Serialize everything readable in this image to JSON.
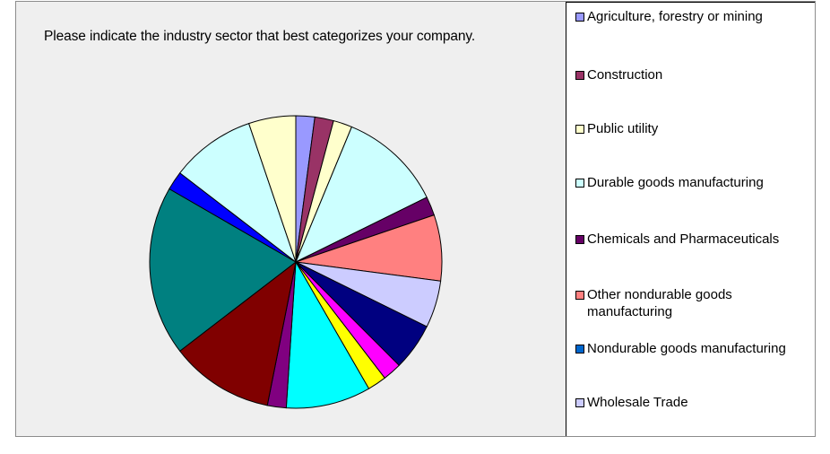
{
  "chart_data": {
    "type": "pie",
    "title": "Please indicate the industry sector that best categorizes your company.",
    "start_angle_deg": 0,
    "direction": "clockwise",
    "slices": [
      {
        "label": "Agriculture, forestry or mining",
        "value": 2,
        "color": "#9999ff"
      },
      {
        "label": "Construction",
        "value": 2,
        "color": "#993366"
      },
      {
        "label": "Public utility",
        "value": 2,
        "color": "#ffffcc"
      },
      {
        "label": "Durable goods manufacturing",
        "value": 11,
        "color": "#ccffff"
      },
      {
        "label": "Chemicals and Pharmaceuticals",
        "value": 2,
        "color": "#660066"
      },
      {
        "label": "Other nondurable goods manufacturing",
        "value": 7,
        "color": "#ff8080"
      },
      {
        "label": "Nondurable goods manufacturing",
        "value": 0,
        "color": "#0066cc"
      },
      {
        "label": "Wholesale Trade",
        "value": 5,
        "color": "#ccccff"
      },
      {
        "label": "",
        "value": 5,
        "color": "#000080"
      },
      {
        "label": "",
        "value": 2,
        "color": "#ff00ff"
      },
      {
        "label": "",
        "value": 2,
        "color": "#ffff00"
      },
      {
        "label": "",
        "value": 9,
        "color": "#00ffff"
      },
      {
        "label": "",
        "value": 2,
        "color": "#800080"
      },
      {
        "label": "",
        "value": 11,
        "color": "#800000"
      },
      {
        "label": "",
        "value": 18,
        "color": "#008080"
      },
      {
        "label": "",
        "value": 2,
        "color": "#0000ff"
      },
      {
        "label": "",
        "value": 9,
        "color": "#ccffff"
      },
      {
        "label": "",
        "value": 5,
        "color": "#ffffcc"
      }
    ],
    "legend": {
      "position": "right",
      "entries": [
        {
          "text": "Agriculture, forestry or mining",
          "color": "#9999ff"
        },
        {
          "text": "Construction",
          "color": "#993366"
        },
        {
          "text": "Public utility",
          "color": "#ffffcc"
        },
        {
          "text": "Durable goods manufacturing",
          "color": "#ccffff"
        },
        {
          "text": "Chemicals and Pharmaceuticals",
          "color": "#660066"
        },
        {
          "text": "Other nondurable goods manufacturing",
          "color": "#ff8080"
        },
        {
          "text": "Nondurable goods manufacturing",
          "color": "#0066cc"
        },
        {
          "text": "Wholesale Trade",
          "color": "#ccccff"
        }
      ]
    }
  }
}
